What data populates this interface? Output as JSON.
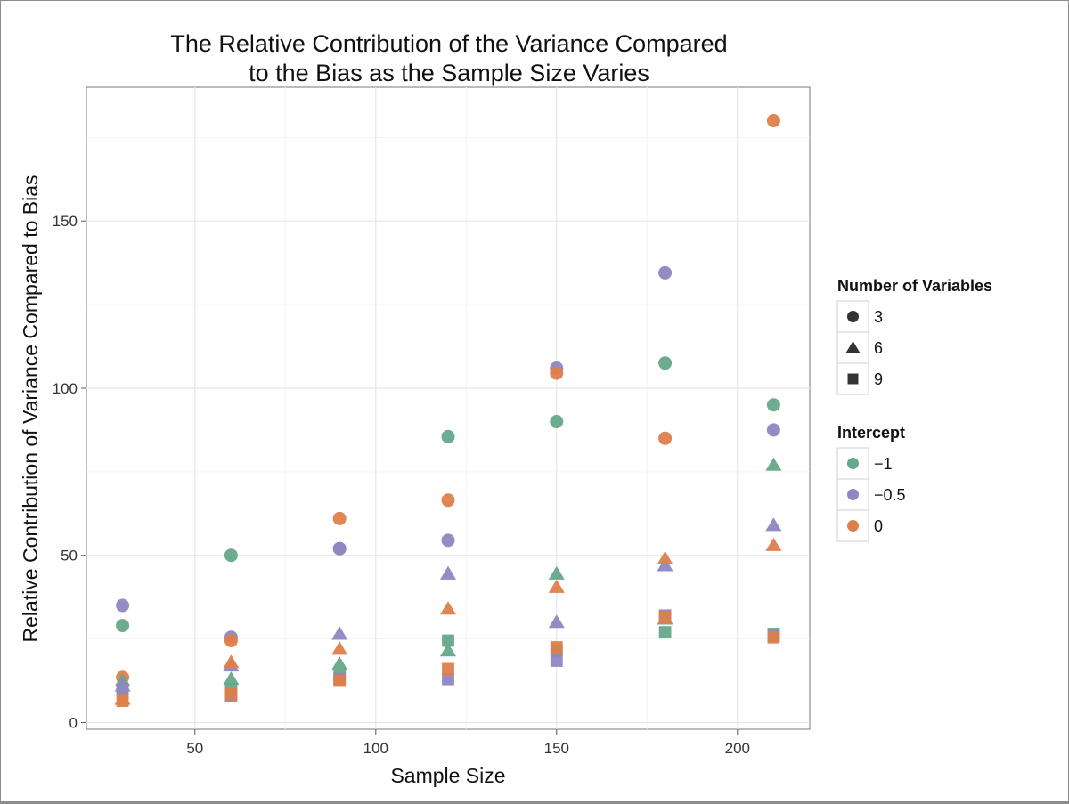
{
  "chart_data": {
    "type": "scatter",
    "title": [
      "The Relative Contribution of the Variance Compared",
      "to the Bias as the Sample Size Varies"
    ],
    "xlabel": "Sample Size",
    "ylabel": "Relative Contribution of Variance Compared to Bias",
    "xlim": [
      20,
      220
    ],
    "ylim": [
      -2,
      190
    ],
    "xticks": [
      50,
      100,
      150,
      200
    ],
    "yticks": [
      0,
      50,
      100,
      150
    ],
    "grid": true,
    "legend_position": "right",
    "shape_legend": {
      "title": "Number of Variables",
      "entries": [
        {
          "label": "3",
          "shape": "circle"
        },
        {
          "label": "6",
          "shape": "triangle"
        },
        {
          "label": "9",
          "shape": "square"
        }
      ]
    },
    "color_legend": {
      "title": "Intercept",
      "entries": [
        {
          "label": "−1",
          "color": "#66a88a"
        },
        {
          "label": "−0.5",
          "color": "#8f86c2"
        },
        {
          "label": "0",
          "color": "#de7e4a"
        }
      ]
    },
    "series": [
      {
        "variables": "3",
        "intercept": "−1",
        "x": [
          30,
          60,
          90,
          120,
          150,
          180,
          210
        ],
        "y": [
          29,
          50,
          52,
          85.5,
          90,
          107.5,
          95
        ]
      },
      {
        "variables": "3",
        "intercept": "−0.5",
        "x": [
          30,
          60,
          90,
          120,
          150,
          180,
          210
        ],
        "y": [
          35,
          25.5,
          52,
          54.5,
          106,
          134.5,
          87.5
        ]
      },
      {
        "variables": "3",
        "intercept": "0",
        "x": [
          30,
          60,
          90,
          120,
          150,
          180,
          210
        ],
        "y": [
          13.5,
          24.5,
          61,
          66.5,
          104.5,
          85,
          180
        ]
      },
      {
        "variables": "6",
        "intercept": "−1",
        "x": [
          30,
          60,
          90,
          120,
          150,
          180,
          210
        ],
        "y": [
          12.5,
          13,
          17.5,
          21.5,
          44.5,
          31,
          77
        ]
      },
      {
        "variables": "6",
        "intercept": "−0.5",
        "x": [
          30,
          60,
          90,
          120,
          150,
          180,
          210
        ],
        "y": [
          11,
          17,
          26.5,
          44.5,
          30,
          47,
          59
        ]
      },
      {
        "variables": "6",
        "intercept": "0",
        "x": [
          30,
          60,
          90,
          120,
          150,
          180,
          210
        ],
        "y": [
          7,
          18,
          22,
          34,
          40.5,
          49,
          53
        ]
      },
      {
        "variables": "9",
        "intercept": "−1",
        "x": [
          30,
          60,
          90,
          120,
          150,
          180,
          210
        ],
        "y": [
          9,
          10,
          14,
          24.5,
          21.5,
          27,
          26.5
        ]
      },
      {
        "variables": "9",
        "intercept": "−0.5",
        "x": [
          30,
          60,
          90,
          120,
          150,
          180,
          210
        ],
        "y": [
          10,
          8,
          13,
          13,
          18.5,
          32,
          26
        ]
      },
      {
        "variables": "9",
        "intercept": "0",
        "x": [
          30,
          60,
          90,
          120,
          150,
          180,
          210
        ],
        "y": [
          6.5,
          8.5,
          12.5,
          16,
          22.5,
          31.5,
          25.5
        ]
      }
    ]
  }
}
